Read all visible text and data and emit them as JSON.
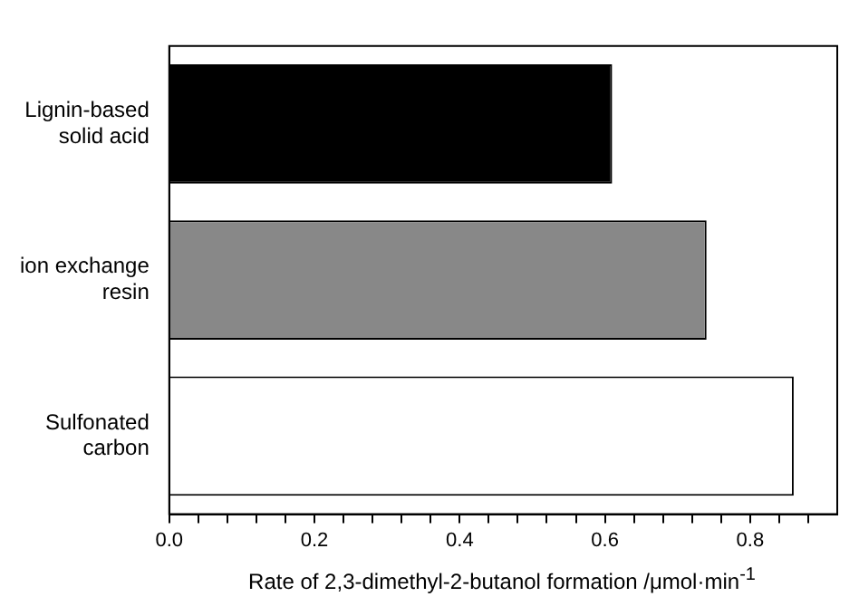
{
  "chart_data": {
    "type": "bar",
    "orientation": "horizontal",
    "categories": [
      "Lignin-based solid acid",
      "ion exchange resin",
      "Sulfonated carbon"
    ],
    "values": [
      0.61,
      0.74,
      0.86
    ],
    "colors": [
      "#000000",
      "#888888",
      "#ffffff"
    ],
    "xlabel": "Rate of  2,3-dimethyl-2-butanol formation /μmol·min$^{-1}$",
    "xlim": [
      0,
      0.92
    ],
    "xticks": [
      {
        "value": 0,
        "label": "0.0"
      },
      {
        "value": 0.04,
        "label": null
      },
      {
        "value": 0.08,
        "label": null
      },
      {
        "value": 0.12,
        "label": null
      },
      {
        "value": 0.16,
        "label": null
      },
      {
        "value": 0.2,
        "label": "0.2"
      },
      {
        "value": 0.24,
        "label": null
      },
      {
        "value": 0.28,
        "label": null
      },
      {
        "value": 0.32,
        "label": null
      },
      {
        "value": 0.36,
        "label": null
      },
      {
        "value": 0.4,
        "label": "0.4"
      },
      {
        "value": 0.44,
        "label": null
      },
      {
        "value": 0.48,
        "label": null
      },
      {
        "value": 0.52,
        "label": null
      },
      {
        "value": 0.56,
        "label": null
      },
      {
        "value": 0.6,
        "label": "0.6"
      },
      {
        "value": 0.64,
        "label": null
      },
      {
        "value": 0.68,
        "label": null
      },
      {
        "value": 0.72,
        "label": null
      },
      {
        "value": 0.76,
        "label": null
      },
      {
        "value": 0.8,
        "label": "0.8"
      },
      {
        "value": 0.84,
        "label": null
      },
      {
        "value": 0.88,
        "label": null
      }
    ],
    "grid": false,
    "legend": false
  }
}
